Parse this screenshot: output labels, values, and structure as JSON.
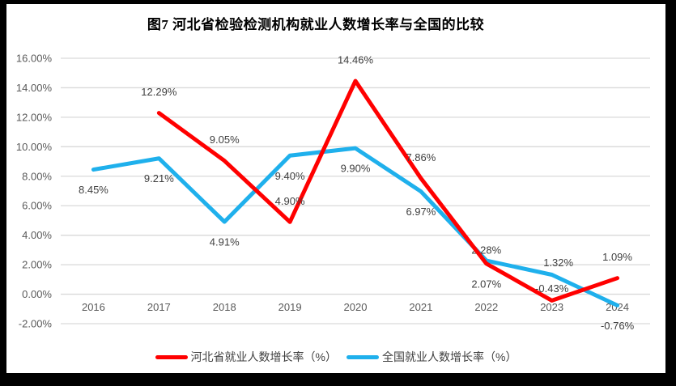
{
  "chart": {
    "colors": {
      "hebei_line": "#FF0000",
      "national_line": "#1FB0EC",
      "gridline": "#D9D9D9",
      "axis_text": "#595959",
      "data_label_text": "#404040",
      "frame": "#000000",
      "background": "#FFFFFF"
    }
  },
  "chart_data": {
    "type": "line",
    "title": "图7 河北省检验检测机构就业人数增长率与全国的比较",
    "categories": [
      "2016",
      "2017",
      "2018",
      "2019",
      "2020",
      "2021",
      "2022",
      "2023",
      "2024"
    ],
    "ylim": [
      -2,
      16
    ],
    "grid": "horizontal",
    "legend_position": "bottom",
    "y_ticks": [
      {
        "label": "16.00%",
        "value": 16
      },
      {
        "label": "14.00%",
        "value": 14
      },
      {
        "label": "12.00%",
        "value": 12
      },
      {
        "label": "10.00%",
        "value": 10
      },
      {
        "label": "8.00%",
        "value": 8
      },
      {
        "label": "6.00%",
        "value": 6
      },
      {
        "label": "4.00%",
        "value": 4
      },
      {
        "label": "2.00%",
        "value": 2
      },
      {
        "label": "0.00%",
        "value": 0
      },
      {
        "label": "-2.00%",
        "value": -2
      }
    ],
    "series": [
      {
        "name": "河北省就业人数增长率（%）",
        "color": "#FF0000",
        "points": [
          {
            "year": "2017",
            "value": 12.29,
            "label": "12.29%",
            "label_pos": "above"
          },
          {
            "year": "2018",
            "value": 9.05,
            "label": "9.05%",
            "label_pos": "above"
          },
          {
            "year": "2019",
            "value": 4.9,
            "label": "4.90%",
            "label_pos": "above"
          },
          {
            "year": "2020",
            "value": 14.46,
            "label": "14.46%",
            "label_pos": "above"
          },
          {
            "year": "2021",
            "value": 7.86,
            "label": "7.86%",
            "label_pos": "above"
          },
          {
            "year": "2022",
            "value": 2.07,
            "label": "2.07%",
            "label_pos": "below"
          },
          {
            "year": "2023",
            "value": -0.43,
            "label": "-0.43%",
            "label_pos": "above",
            "dy": -15
          },
          {
            "year": "2024",
            "value": 1.09,
            "label": "1.09%",
            "label_pos": "above"
          }
        ]
      },
      {
        "name": "全国就业人数增长率（%）",
        "color": "#1FB0EC",
        "points": [
          {
            "year": "2016",
            "value": 8.45,
            "label": "8.45%",
            "label_pos": "below"
          },
          {
            "year": "2017",
            "value": 9.21,
            "label": "9.21%",
            "label_pos": "below"
          },
          {
            "year": "2018",
            "value": 4.91,
            "label": "4.91%",
            "label_pos": "below"
          },
          {
            "year": "2019",
            "value": 9.4,
            "label": "9.40%",
            "label_pos": "below"
          },
          {
            "year": "2020",
            "value": 9.9,
            "label": "9.90%",
            "label_pos": "below"
          },
          {
            "year": "2021",
            "value": 6.97,
            "label": "6.97%",
            "label_pos": "below"
          },
          {
            "year": "2022",
            "value": 2.28,
            "label": "2.28%",
            "label_pos": "above",
            "dy": -13
          },
          {
            "year": "2023",
            "value": 1.32,
            "label": "1.32%",
            "label_pos": "above",
            "dy": -15,
            "dx": 8
          },
          {
            "year": "2024",
            "value": -0.76,
            "label": "-0.76%",
            "label_pos": "below"
          }
        ]
      }
    ]
  }
}
